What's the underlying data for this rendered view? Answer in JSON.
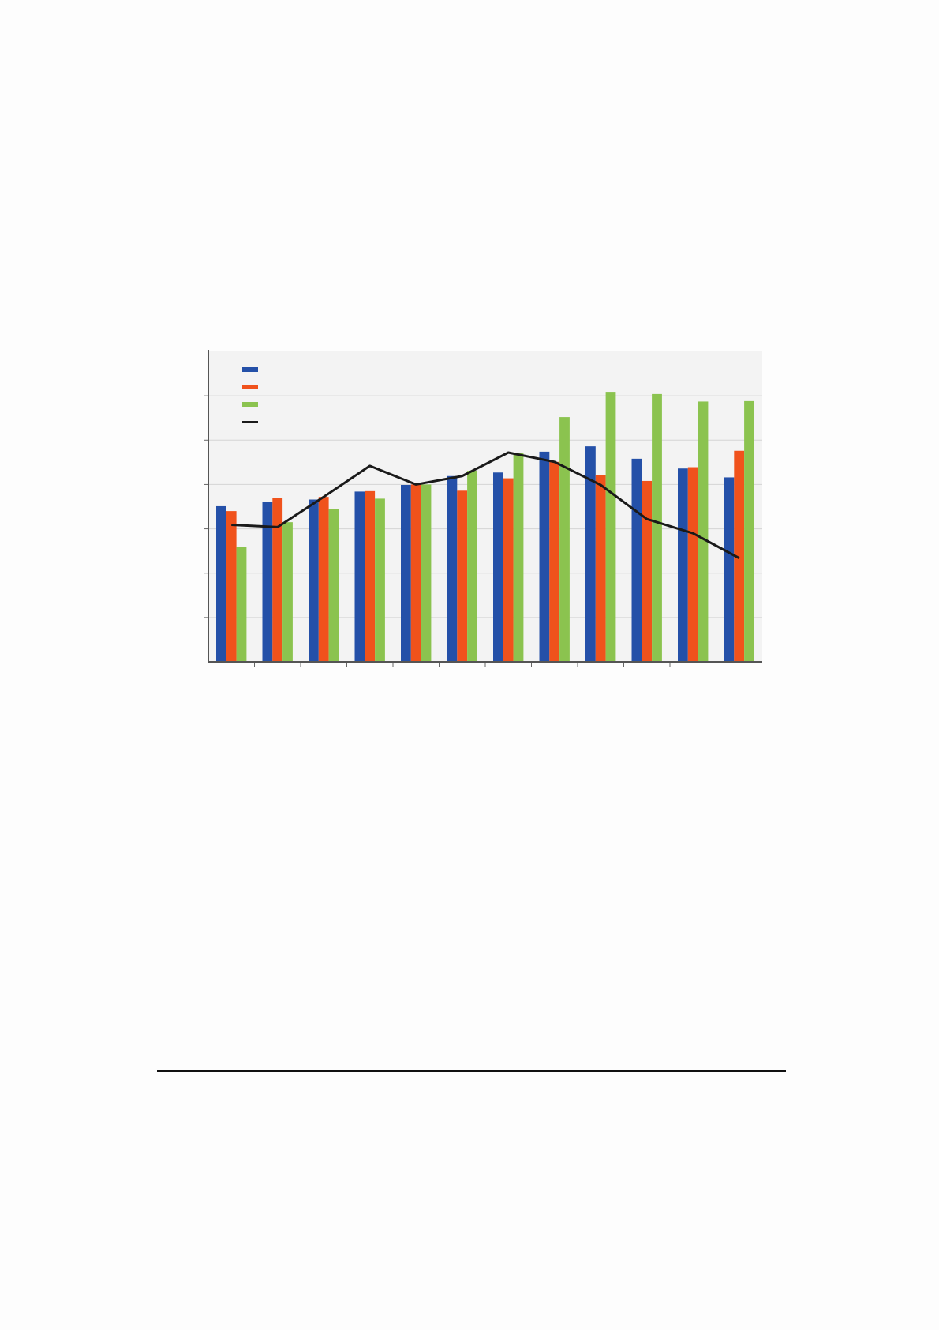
{
  "chart_data": {
    "type": "bar",
    "title": "",
    "xlabel": "",
    "ylabel": "",
    "categories": [
      "",
      "",
      "",
      "",
      "",
      "",
      "",
      "",
      "",
      "",
      "",
      ""
    ],
    "ylim": [
      0,
      7
    ],
    "grid": true,
    "legend": "top-left",
    "series": [
      {
        "kind": "bar",
        "color": "#2450a8",
        "values": [
          3.51,
          3.6,
          3.66,
          3.84,
          3.99,
          4.19,
          4.27,
          4.74,
          4.86,
          4.58,
          4.36,
          4.16
        ]
      },
      {
        "kind": "bar",
        "color": "#f0521c",
        "values": [
          3.4,
          3.69,
          3.72,
          3.85,
          4.0,
          3.86,
          4.14,
          4.51,
          4.22,
          4.08,
          4.39,
          4.76
        ]
      },
      {
        "kind": "bar",
        "color": "#8bc34f",
        "values": [
          2.59,
          3.15,
          3.44,
          3.68,
          4.0,
          4.31,
          4.72,
          5.52,
          6.09,
          6.04,
          5.87,
          5.88
        ]
      },
      {
        "kind": "line",
        "color": "#1a1a1a",
        "values": [
          3.09,
          3.04,
          3.72,
          4.42,
          4.0,
          4.19,
          4.72,
          4.51,
          3.99,
          3.22,
          2.9,
          2.34
        ]
      }
    ]
  }
}
